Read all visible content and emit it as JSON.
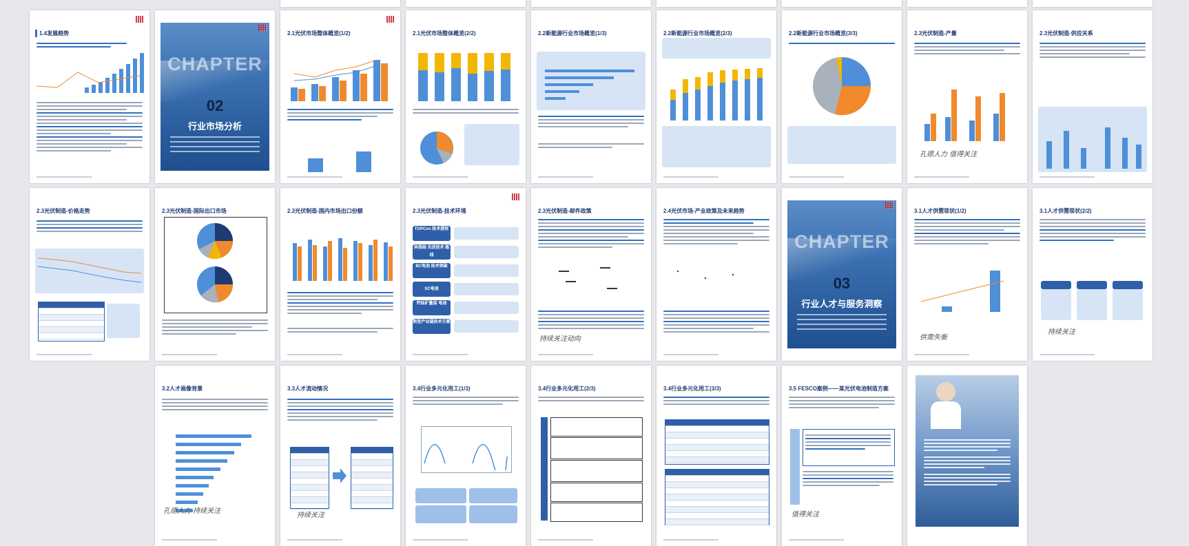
{
  "pages": {
    "p1": {
      "title": "1.4发展趋势"
    },
    "p2": {
      "cover_word": "CHAPTER",
      "number": "02",
      "title": "行业市场分析"
    },
    "p3": {
      "title": "2.1光伏市场整体概览(1/2)"
    },
    "p4": {
      "title": "2.1光伏市场整体概览(2/2)"
    },
    "p5": {
      "title": "2.2新能源行业市场概览(1/3)"
    },
    "p6": {
      "title": "2.2新能源行业市场概览(2/3)"
    },
    "p7": {
      "title": "2.2新能源行业市场概览(3/3)"
    },
    "p8": {
      "title": "2.3光伏制造-产量",
      "handwriting": "孔德人力 值得关注"
    },
    "p9": {
      "title": "2.3光伏制造-供应关系"
    },
    "p10": {
      "title": "2.3光伏制造-价格走势"
    },
    "p11": {
      "title": "2.3光伏制造-国际出口市场"
    },
    "p12": {
      "title": "2.3光伏制造-国内市场出口份额"
    },
    "p13": {
      "title": "2.3光伏制造-技术环境",
      "blocks": [
        "TOPCon 技术提效",
        "异质结 光伏技术 路线",
        "BC电池 技术突破",
        "SC电池",
        "钙钛矿叠层 电池",
        "新型产业链技术方案"
      ]
    },
    "p14": {
      "title": "2.3光伏制造-邮件政策",
      "handwriting": "持续关注动向"
    },
    "p15": {
      "title": "2.4光伏市场-产业政策及未来趋势"
    },
    "p16": {
      "cover_word": "CHAPTER",
      "number": "03",
      "title": "行业人才与服务洞察"
    },
    "p17": {
      "title": "3.1人才供需现状(1/2)",
      "handwriting": "供需失衡"
    },
    "p18": {
      "title": "3.1人才供需现状(2/2)",
      "handwriting": "持续关注"
    },
    "p19": {
      "title": "3.2人才画像背景",
      "handwriting": "孔德人力 持续关注"
    },
    "p20": {
      "title": "3.3人才流动情况",
      "handwriting": "持续关注"
    },
    "p21": {
      "title": "3.4行业多元化用工(1/3)"
    },
    "p22": {
      "title": "3.4行业多元化用工(2/3)"
    },
    "p23": {
      "title": "3.4行业多元化用工(3/3)"
    },
    "p24": {
      "title": "3.5 FESCO案例——某光伏电池制造方案",
      "handwriting": "值得关注"
    },
    "p25": {}
  },
  "colors": {
    "primary": "#2f6fbf",
    "dark": "#1f3b73",
    "orange": "#f08a2c",
    "yellow": "#f2b705",
    "accent_red": "#c02030"
  }
}
